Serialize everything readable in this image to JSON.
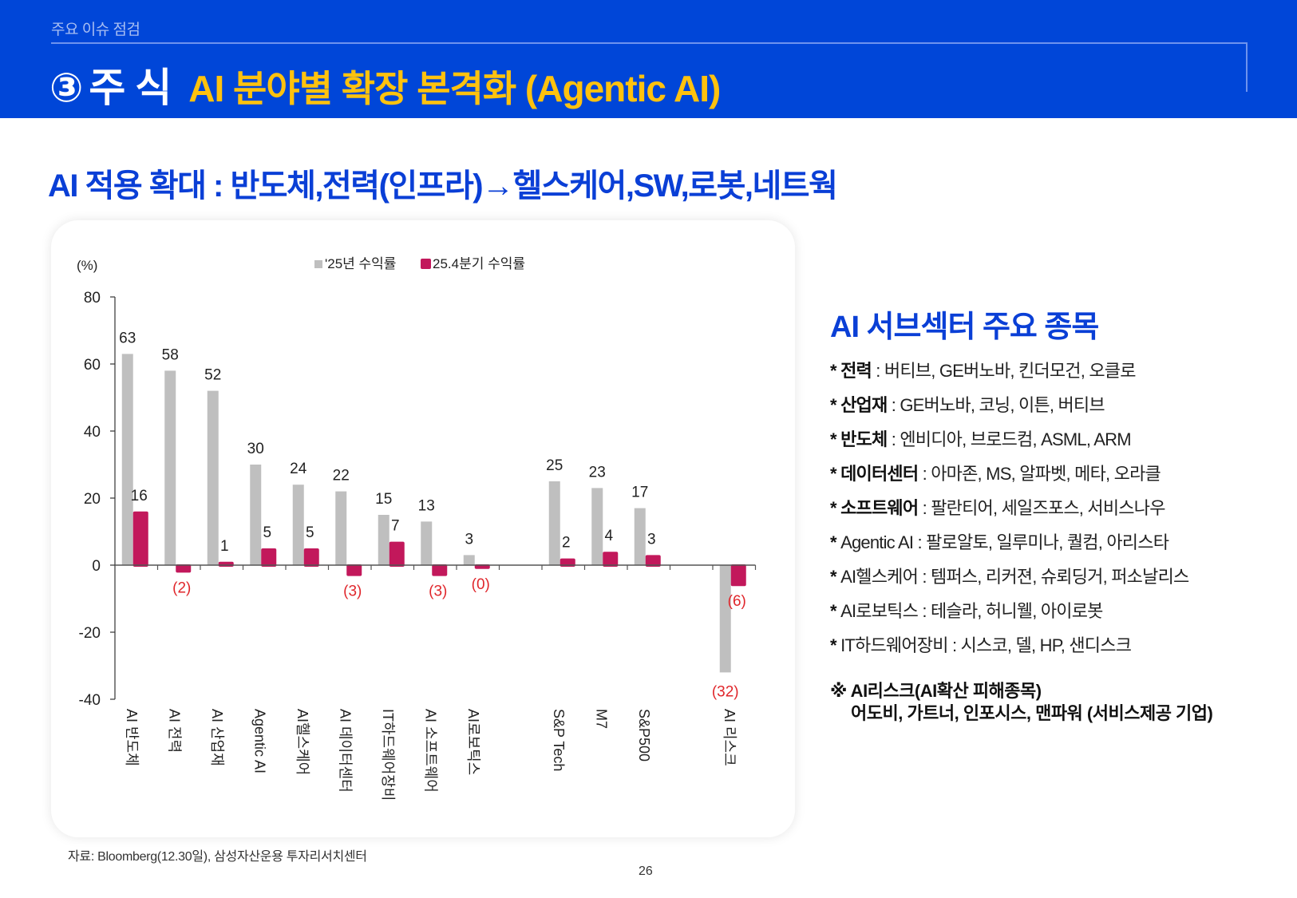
{
  "header": {
    "section": "주요 이슈 점검",
    "number": "③",
    "title": "주 식",
    "subtitle": "AI 분야별 확장 본격화 (Agentic AI)"
  },
  "headline": "AI 적용 확대 : 반도체,전력(인프라)→헬스케어,SW,로봇,네트웍",
  "colors": {
    "header_bg": "#0046d8",
    "accent_yellow": "#ffc20e",
    "accent_blue": "#0a3fd6",
    "series_gray": "#bfbfbf",
    "series_magenta": "#c2185b",
    "negative_label": "#e0262b"
  },
  "chart_data": {
    "type": "bar",
    "title": "",
    "ylabel": "(%)",
    "xlabel": "",
    "ylim": [
      -40,
      80
    ],
    "yticks": [
      80,
      60,
      40,
      20,
      0,
      -20,
      -40
    ],
    "grid": false,
    "legend_position": "top",
    "categories": [
      "AI 반도체",
      "AI 전력",
      "AI 산업재",
      "Agentic AI",
      "AI헬스케어",
      "AI 데이터센터",
      "IT하드웨어장비",
      "AI 소프트웨어",
      "AI로보틱스",
      "",
      "S&P Tech",
      "M7",
      "S&P500",
      "",
      "AI 리스크"
    ],
    "series": [
      {
        "name": "'25년 수익률",
        "color": "#bfbfbf",
        "values": [
          63,
          58,
          52,
          30,
          24,
          22,
          15,
          13,
          3,
          null,
          25,
          23,
          17,
          null,
          -32
        ]
      },
      {
        "name": "25.4분기 수익률",
        "color": "#c2185b",
        "values": [
          16,
          -2,
          1,
          5,
          5,
          -3,
          7,
          -3,
          -0.3,
          null,
          2,
          4,
          3,
          null,
          -6
        ]
      }
    ],
    "data_labels": {
      "'25년 수익률": [
        "63",
        "58",
        "52",
        "30",
        "24",
        "22",
        "15",
        "13",
        "3",
        "",
        "25",
        "23",
        "17",
        "",
        "(32)"
      ],
      "25.4분기 수익률": [
        "16",
        "(2)",
        "1",
        "5",
        "5",
        "(3)",
        "7",
        "(3)",
        "(0)",
        "",
        "2",
        "4",
        "3",
        "",
        "(6)"
      ]
    }
  },
  "source": "자료: Bloomberg(12.30일), 삼성자산운용 투자리서치센터",
  "page_number": "26",
  "side": {
    "title": "AI 서브섹터 주요 종목",
    "items": [
      {
        "label": "전력",
        "value": "버티브, GE버노바, 킨더모건, 오클로",
        "label_bold": true
      },
      {
        "label": "산업재",
        "value": "GE버노바, 코닝, 이튼, 버티브",
        "label_bold": true
      },
      {
        "label": "반도체",
        "value": "엔비디아, 브로드컴, ASML, ARM",
        "label_bold": true
      },
      {
        "label": "데이터센터",
        "value": "아마존, MS, 알파벳, 메타, 오라클",
        "label_bold": true
      },
      {
        "label": "소프트웨어",
        "value": "팔란티어, 세일즈포스, 서비스나우",
        "label_bold": true
      },
      {
        "label": "Agentic AI",
        "value": "팔로알토, 일루미나, 퀄컴, 아리스타",
        "label_bold": false
      },
      {
        "label": "AI헬스케어",
        "value": "템퍼스, 리커젼, 슈뢰딩거, 퍼소날리스",
        "label_bold": false
      },
      {
        "label": "AI로보틱스",
        "value": "테슬라, 허니웰, 아이로봇",
        "label_bold": false
      },
      {
        "label": "IT하드웨어장비",
        "value": "시스코, 델, HP, 샌디스크",
        "label_bold": false
      }
    ],
    "risk_title": "※ AI리스크(AI확산 피해종목)",
    "risk_body": "어도비, 가트너, 인포시스, 맨파워 (서비스제공 기업)"
  }
}
